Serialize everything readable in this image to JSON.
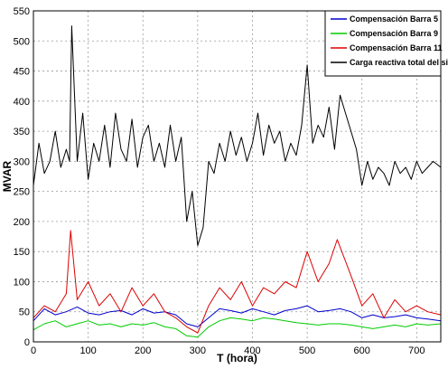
{
  "chart_data": {
    "type": "line",
    "xlabel": "T (hora)",
    "ylabel": "MVAR",
    "xlim": [
      0,
      744
    ],
    "ylim": [
      0,
      550
    ],
    "xticks": [
      0,
      100,
      200,
      300,
      400,
      500,
      600,
      700
    ],
    "yticks": [
      0,
      50,
      100,
      150,
      200,
      250,
      300,
      350,
      400,
      450,
      500,
      550
    ],
    "grid": true,
    "legend_position": "top-right",
    "series": [
      {
        "name": "Compensación Barra 5",
        "color": "#0000cc",
        "x": [
          0,
          20,
          40,
          60,
          80,
          100,
          120,
          140,
          160,
          180,
          200,
          220,
          240,
          260,
          280,
          300,
          320,
          340,
          360,
          380,
          400,
          420,
          440,
          460,
          480,
          500,
          520,
          540,
          560,
          580,
          600,
          620,
          640,
          660,
          680,
          700,
          720,
          744
        ],
        "y": [
          35,
          55,
          45,
          50,
          58,
          48,
          45,
          50,
          52,
          45,
          55,
          48,
          50,
          45,
          30,
          25,
          40,
          55,
          52,
          48,
          55,
          50,
          45,
          52,
          55,
          60,
          50,
          52,
          55,
          50,
          40,
          45,
          40,
          42,
          45,
          40,
          38,
          35
        ]
      },
      {
        "name": "Compensación Barra 9",
        "color": "#00cc00",
        "x": [
          0,
          20,
          40,
          60,
          80,
          100,
          120,
          140,
          160,
          180,
          200,
          220,
          240,
          260,
          280,
          300,
          320,
          340,
          360,
          380,
          400,
          420,
          440,
          460,
          480,
          500,
          520,
          540,
          560,
          580,
          600,
          620,
          640,
          660,
          680,
          700,
          720,
          744
        ],
        "y": [
          20,
          30,
          35,
          25,
          30,
          35,
          28,
          30,
          25,
          30,
          28,
          32,
          25,
          22,
          10,
          8,
          25,
          35,
          40,
          38,
          35,
          40,
          38,
          35,
          32,
          30,
          28,
          30,
          30,
          28,
          25,
          22,
          25,
          28,
          25,
          30,
          28,
          30
        ]
      },
      {
        "name": "Compensación Barra 11",
        "color": "#dd0000",
        "x": [
          0,
          20,
          40,
          60,
          68,
          80,
          100,
          120,
          140,
          160,
          180,
          200,
          220,
          240,
          260,
          280,
          300,
          320,
          340,
          360,
          380,
          400,
          420,
          440,
          460,
          480,
          500,
          520,
          540,
          555,
          580,
          600,
          620,
          640,
          660,
          680,
          700,
          720,
          744
        ],
        "y": [
          40,
          60,
          50,
          80,
          185,
          70,
          100,
          60,
          80,
          50,
          90,
          60,
          80,
          50,
          40,
          25,
          15,
          60,
          90,
          70,
          100,
          60,
          90,
          80,
          100,
          90,
          150,
          100,
          130,
          170,
          110,
          60,
          80,
          40,
          70,
          50,
          60,
          50,
          45
        ]
      },
      {
        "name": "Carga reactiva total del sistema",
        "color": "#000000",
        "x": [
          0,
          10,
          20,
          30,
          40,
          50,
          60,
          66,
          70,
          80,
          90,
          100,
          110,
          120,
          130,
          140,
          150,
          160,
          170,
          180,
          190,
          200,
          210,
          220,
          230,
          240,
          250,
          260,
          270,
          280,
          290,
          300,
          310,
          320,
          330,
          340,
          350,
          360,
          370,
          380,
          390,
          400,
          410,
          420,
          430,
          440,
          450,
          460,
          470,
          480,
          490,
          500,
          510,
          520,
          530,
          540,
          550,
          560,
          570,
          580,
          590,
          600,
          610,
          620,
          630,
          640,
          650,
          660,
          670,
          680,
          690,
          700,
          710,
          720,
          730,
          744
        ],
        "y": [
          260,
          330,
          280,
          300,
          350,
          290,
          320,
          300,
          525,
          300,
          380,
          270,
          330,
          300,
          360,
          290,
          380,
          320,
          300,
          370,
          290,
          340,
          360,
          300,
          330,
          290,
          360,
          300,
          340,
          200,
          250,
          160,
          190,
          300,
          280,
          330,
          300,
          350,
          310,
          340,
          300,
          330,
          380,
          310,
          360,
          330,
          350,
          300,
          330,
          310,
          360,
          460,
          330,
          360,
          340,
          390,
          320,
          410,
          380,
          350,
          320,
          260,
          300,
          270,
          290,
          280,
          260,
          300,
          280,
          290,
          270,
          300,
          280,
          290,
          300,
          290
        ]
      }
    ]
  }
}
